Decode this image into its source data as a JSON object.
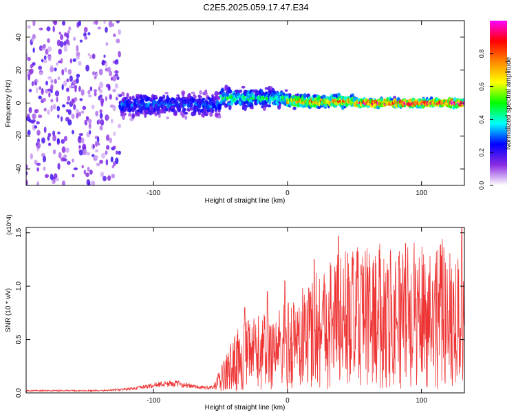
{
  "figure": {
    "title": "C2E5.2025.059.17.47.E34"
  },
  "chart_data": [
    {
      "type": "heatmap",
      "title": "C2E5.2025.059.17.47.E34",
      "xlabel": "Height of straight line (km)",
      "ylabel": "Frequency (Hz)",
      "xlim": [
        -195,
        132
      ],
      "ylim": [
        -50,
        50
      ],
      "x_ticks": [
        "-100",
        "0",
        "100"
      ],
      "x_tick_values": [
        -100,
        0,
        100
      ],
      "y_ticks": [
        "-40",
        "-20",
        "0",
        "20",
        "40"
      ],
      "y_tick_values": [
        -40,
        -20,
        0,
        20,
        40
      ],
      "colorbar": {
        "label": "Normalized spectral amplitude",
        "range": [
          0,
          1
        ],
        "ticks": [
          "0.0",
          "0.2",
          "0.4",
          "0.6",
          "0.8"
        ],
        "tick_values": [
          0.0,
          0.2,
          0.4,
          0.6,
          0.8
        ],
        "colors": [
          "#ffffff",
          "#8a2be2",
          "#0000ff",
          "#00ffff",
          "#00ff00",
          "#ffff00",
          "#ff8800",
          "#ff0000",
          "#ff00ff"
        ]
      },
      "regions": [
        {
          "x_range": [
            -195,
            -125
          ],
          "description_level": "broadband noise",
          "freq_spread_hz": 50,
          "amplitude": 0.1
        },
        {
          "x_range": [
            -125,
            -50
          ],
          "center_freq_hz": -1,
          "bandwidth_hz": 6,
          "amplitude": 0.3
        },
        {
          "x_range": [
            -50,
            0
          ],
          "center_freq_hz": 3,
          "bandwidth_hz": 5,
          "amplitude": 0.45
        },
        {
          "x_range": [
            0,
            50
          ],
          "center_freq_hz": 1,
          "bandwidth_hz": 3,
          "amplitude": 0.75
        },
        {
          "x_range": [
            50,
            132
          ],
          "center_freq_hz": 0,
          "bandwidth_hz": 2,
          "amplitude": 0.95
        }
      ],
      "grid": false
    },
    {
      "type": "line",
      "xlabel": "Height of straight line (km)",
      "ylabel": "SNR (10 * v/v)",
      "y_multiplier": "(x10^4)",
      "xlim": [
        -195,
        132
      ],
      "ylim": [
        0,
        1.55
      ],
      "x_ticks": [
        "-100",
        "0",
        "100"
      ],
      "x_tick_values": [
        -100,
        0,
        100
      ],
      "y_ticks": [
        "0.0",
        "0.5",
        "1.0",
        "1.5"
      ],
      "y_tick_values": [
        0,
        0.5,
        1.0,
        1.5
      ],
      "color": "#ee3333",
      "grid": false,
      "series": [
        {
          "x": [
            -195,
            -180,
            -160,
            -140,
            -125,
            -115,
            -105,
            -95,
            -85,
            -75,
            -65,
            -55,
            -50,
            -45,
            -40,
            -35,
            -30,
            -25,
            -20,
            -15,
            -10,
            -5,
            0,
            10,
            20,
            30,
            40,
            50,
            60,
            70,
            80,
            90,
            100,
            110,
            120,
            130
          ],
          "y": [
            0.02,
            0.02,
            0.02,
            0.02,
            0.03,
            0.04,
            0.06,
            0.08,
            0.09,
            0.07,
            0.05,
            0.05,
            0.12,
            0.2,
            0.28,
            0.33,
            0.35,
            0.37,
            0.38,
            0.4,
            0.42,
            0.42,
            0.45,
            0.5,
            0.6,
            0.65,
            0.7,
            0.7,
            0.7,
            0.72,
            0.72,
            0.72,
            0.74,
            0.74,
            0.74,
            0.72
          ],
          "peaks": [
            {
              "x": -32,
              "y": 0.8
            },
            {
              "x": -15,
              "y": 0.95
            },
            {
              "x": -2,
              "y": 1.05
            },
            {
              "x": 20,
              "y": 1.25
            },
            {
              "x": 38,
              "y": 1.47
            },
            {
              "x": 55,
              "y": 1.2
            },
            {
              "x": 75,
              "y": 1.15
            },
            {
              "x": 88,
              "y": 1.4
            },
            {
              "x": 110,
              "y": 1.05
            },
            {
              "x": 130,
              "y": 1.55
            }
          ]
        }
      ]
    }
  ]
}
